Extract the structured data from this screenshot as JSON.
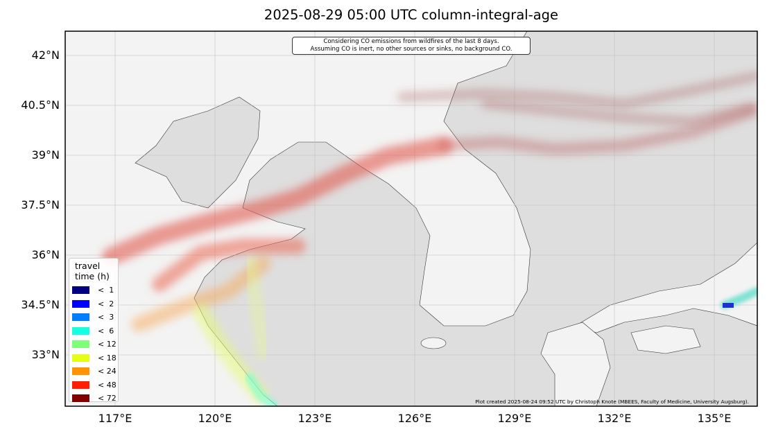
{
  "title": "2025-08-29 05:00 UTC column-integral-age",
  "note": {
    "line1": "Considering CO emissions from wildfires of the last 8 days.",
    "line2": "Assuming CO is inert, no other sources or sinks, no background CO."
  },
  "credit": "Plot created 2025-08-24 09:52 UTC by Christoph Knote (MBEES, Faculty of Medicine, University Augsburg).",
  "axes": {
    "lat_labels": [
      "42°N",
      "40.5°N",
      "39°N",
      "37.5°N",
      "36°N",
      "34.5°N",
      "33°N"
    ],
    "lon_labels": [
      "117°E",
      "120°E",
      "123°E",
      "126°E",
      "129°E",
      "132°E",
      "135°E"
    ]
  },
  "colors": {
    "land": "#f3f3f3",
    "sea": "#dedede",
    "grid": "#c8c8c8"
  },
  "legend": {
    "title1": "travel",
    "title2": "time (h)",
    "items": [
      {
        "label": "<  1",
        "color": "#000080"
      },
      {
        "label": "<  2",
        "color": "#0000ff"
      },
      {
        "label": "<  3",
        "color": "#0080ff"
      },
      {
        "label": "<  6",
        "color": "#15ffe1"
      },
      {
        "label": "< 12",
        "color": "#7dff7a"
      },
      {
        "label": "< 18",
        "color": "#e4ff13"
      },
      {
        "label": "< 24",
        "color": "#ff9400"
      },
      {
        "label": "< 48",
        "color": "#ff1e00"
      },
      {
        "label": "< 72",
        "color": "#800000"
      }
    ]
  }
}
